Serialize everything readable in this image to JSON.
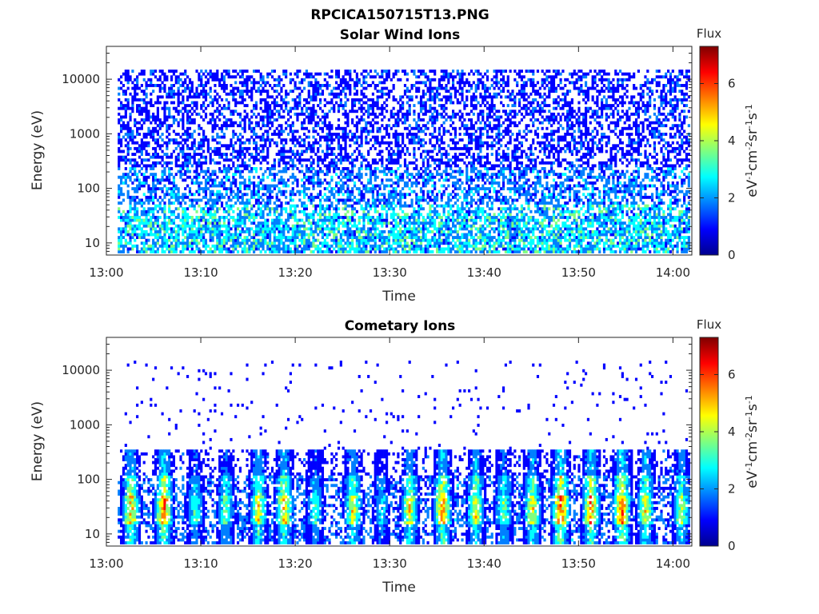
{
  "figure_title": "RPCICA150715T13.PNG",
  "colors": {
    "colormap": [
      "#00008f",
      "#0000ff",
      "#007fff",
      "#00ffff",
      "#7fff7f",
      "#ffff00",
      "#ff7f00",
      "#ff0000",
      "#7f0000"
    ]
  },
  "chart_data": [
    {
      "type": "heatmap",
      "title": "Solar Wind Ions",
      "xlabel": "Time",
      "ylabel": "Energy (eV)",
      "x_ticks": [
        "13:00",
        "13:10",
        "13:20",
        "13:30",
        "13:40",
        "13:50",
        "14:00"
      ],
      "x_range_minutes": [
        0,
        62
      ],
      "y_scale": "log",
      "y_ticks": [
        "10",
        "100",
        "1000",
        "10000"
      ],
      "y_ticks_values": [
        10,
        100,
        1000,
        10000
      ],
      "y_range": [
        6,
        40000
      ],
      "colorbar": {
        "title": "Flux",
        "label": "eV-1cm-2sr-1s-1",
        "ticks": [
          "0",
          "2",
          "4",
          "6"
        ],
        "range": [
          0,
          7.3
        ]
      },
      "grid": false,
      "data_description": "dense scattered low-flux (0-2) signal across 10-15000 eV; higher flux (2-4) concentrated near 10-50 eV"
    },
    {
      "type": "heatmap",
      "title": "Cometary Ions",
      "xlabel": "Time",
      "ylabel": "Energy (eV)",
      "x_ticks": [
        "13:00",
        "13:10",
        "13:20",
        "13:30",
        "13:40",
        "13:50",
        "14:00"
      ],
      "x_range_minutes": [
        0,
        62
      ],
      "y_scale": "log",
      "y_ticks": [
        "10",
        "100",
        "1000",
        "10000"
      ],
      "y_ticks_values": [
        10,
        100,
        1000,
        10000
      ],
      "y_range": [
        6,
        40000
      ],
      "colorbar": {
        "title": "Flux",
        "label": "eV-1cm-2sr-1s-1",
        "ticks": [
          "0",
          "2",
          "4",
          "6"
        ],
        "range": [
          0,
          7.3
        ]
      },
      "grid": false,
      "bursts_minutes": [
        2.5,
        6.0,
        9.3,
        12.5,
        16.0,
        18.7,
        22.0,
        26.0,
        29.0,
        32.0,
        35.5,
        39.0,
        42.0,
        45.0,
        48.0,
        51.2,
        54.5,
        57.0,
        60.8
      ],
      "burst_peak_flux": [
        5.5,
        6.3,
        3.5,
        4.0,
        5.0,
        5.5,
        3.5,
        5.0,
        3.0,
        5.0,
        6.0,
        5.0,
        4.0,
        5.0,
        6.5,
        6.0,
        6.3,
        5.0,
        4.5
      ]
    }
  ]
}
